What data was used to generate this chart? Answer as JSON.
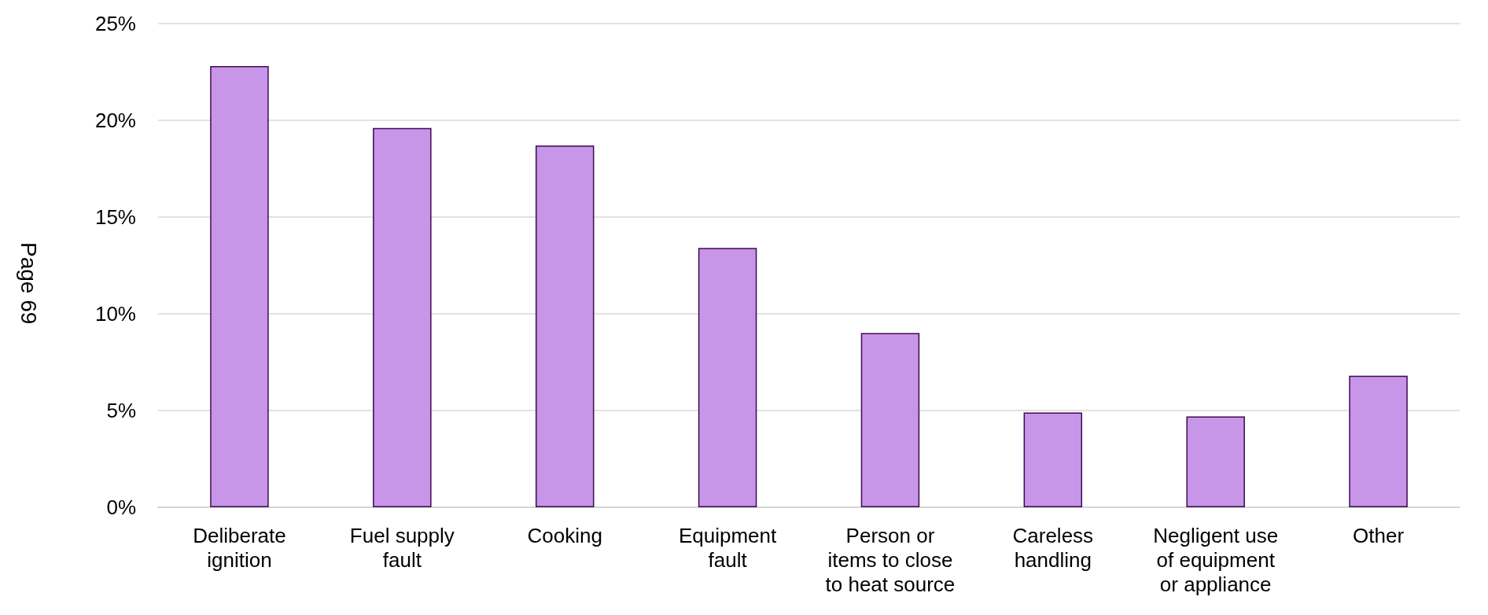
{
  "chart_data": {
    "type": "bar",
    "categories": [
      "Deliberate\nignition",
      "Fuel supply\nfault",
      "Cooking",
      "Equipment\nfault",
      "Person or\nitems to close\nto heat source",
      "Careless\nhandling",
      "Negligent use\nof equipment\nor appliance",
      "Other"
    ],
    "values": [
      22.8,
      19.6,
      18.7,
      13.4,
      9.0,
      4.9,
      4.7,
      6.8
    ],
    "color": "#c896e8",
    "ylim": [
      0,
      25
    ],
    "yticks": [
      {
        "value": 0,
        "label": "0%"
      },
      {
        "value": 5,
        "label": "5%"
      },
      {
        "value": 10,
        "label": "10%"
      },
      {
        "value": 15,
        "label": "15%"
      },
      {
        "value": 20,
        "label": "20%"
      },
      {
        "value": 25,
        "label": "25%"
      }
    ],
    "grid": "y",
    "annotations": [
      "Page 69"
    ]
  }
}
